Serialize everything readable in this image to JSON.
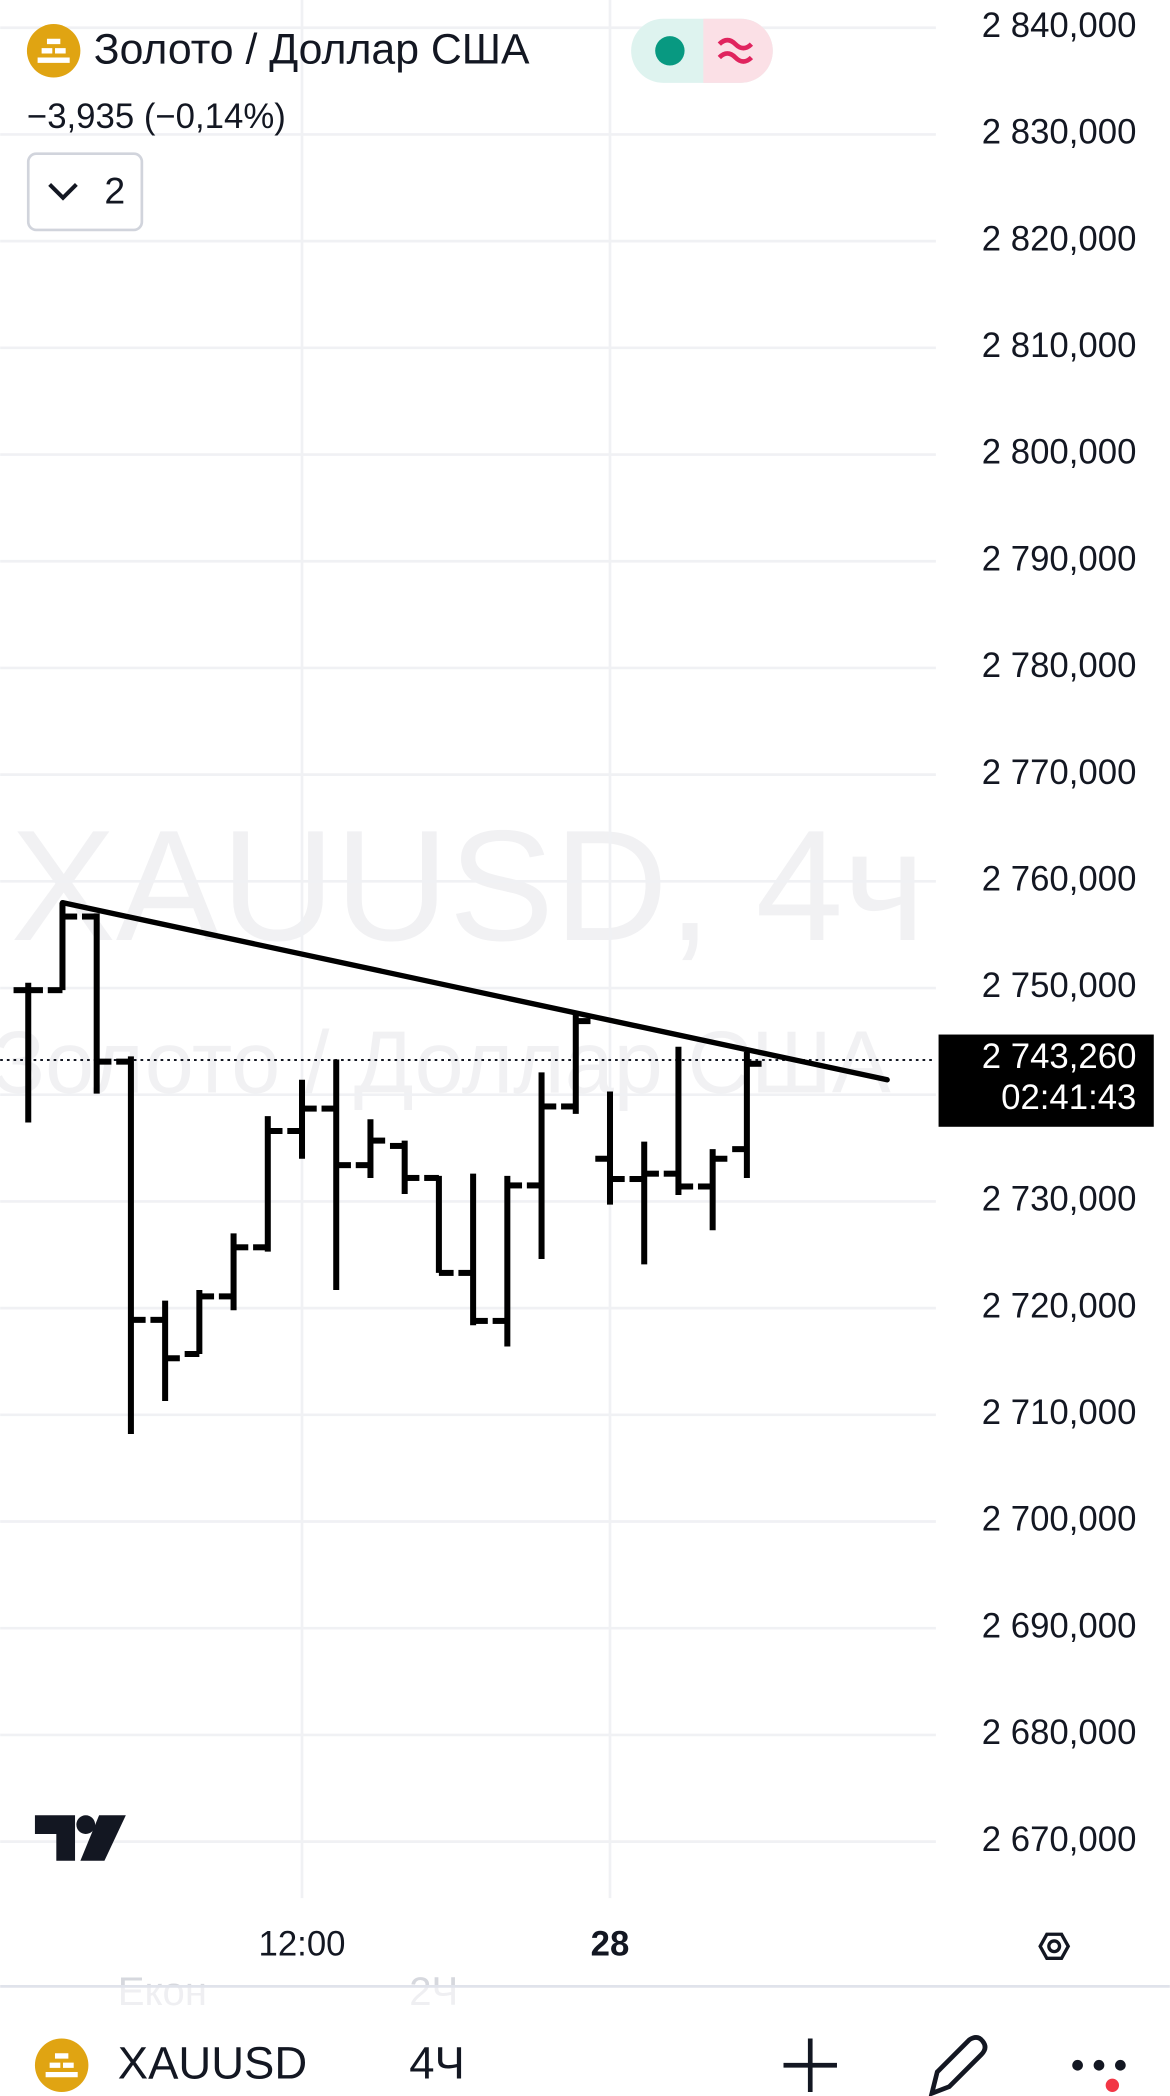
{
  "header": {
    "symbol_name": "Золото / Доллар США",
    "change": "−3,935 (−0,14%)",
    "indicators_count": "2"
  },
  "chart_data": {
    "type": "ohlc",
    "watermark": [
      "XAUUSD, 4ч",
      "Золото / Доллар США"
    ],
    "categories": [
      null,
      null,
      null,
      null,
      null,
      null,
      null,
      null,
      "12:00",
      null,
      null,
      null,
      null,
      null,
      null,
      null,
      null,
      "28",
      null,
      null,
      null,
      null
    ],
    "open": [
      2749.8,
      2749.8,
      2756.7,
      2743.1,
      2718.9,
      2715.7,
      2721.1,
      2725.7,
      2736.6,
      2738.7,
      2733.4,
      2735.2,
      2732.2,
      2723.3,
      2718.8,
      2731.5,
      2738.9,
      2734.0,
      2732.1,
      2732.6,
      2731.4,
      2734.9
    ],
    "high": [
      2750.5,
      2758.0,
      2757.0,
      2743.6,
      2720.7,
      2721.7,
      2727.0,
      2738.0,
      2741.4,
      2743.3,
      2737.7,
      2735.7,
      2732.4,
      2732.6,
      2732.4,
      2742.1,
      2747.5,
      2740.3,
      2735.6,
      2744.5,
      2734.9,
      2744.0
    ],
    "low": [
      2737.4,
      2749.8,
      2740.1,
      2708.2,
      2711.3,
      2715.7,
      2719.8,
      2725.3,
      2734.0,
      2721.7,
      2732.2,
      2730.7,
      2723.3,
      2718.4,
      2716.4,
      2724.6,
      2738.2,
      2729.7,
      2724.1,
      2730.6,
      2727.3,
      2732.2
    ],
    "close": [
      2749.8,
      2756.7,
      2743.1,
      2718.9,
      2715.3,
      2721.1,
      2725.7,
      2736.6,
      2738.7,
      2733.4,
      2735.7,
      2732.2,
      2723.3,
      2718.8,
      2731.5,
      2738.9,
      2746.9,
      2732.1,
      2732.6,
      2731.4,
      2734.0,
      2742.9
    ],
    "color": "#000000",
    "trendline": {
      "x": [
        1,
        25.1
      ],
      "y": [
        2758.0,
        2741.4
      ]
    },
    "last_price": {
      "value": 2743.26,
      "label": "2 743,260"
    },
    "countdown": "02:41:43",
    "ylim": [
      2664.7,
      2842.6
    ],
    "yticks": [
      {
        "value": 2670,
        "label": "2 670,000"
      },
      {
        "value": 2680,
        "label": "2 680,000"
      },
      {
        "value": 2690,
        "label": "2 690,000"
      },
      {
        "value": 2700,
        "label": "2 700,000"
      },
      {
        "value": 2710,
        "label": "2 710,000"
      },
      {
        "value": 2720,
        "label": "2 720,000"
      },
      {
        "value": 2730,
        "label": "2 730,000"
      },
      {
        "value": 2740,
        "label": "2 740,000"
      },
      {
        "value": 2750,
        "label": "2 750,000"
      },
      {
        "value": 2760,
        "label": "2 760,000"
      },
      {
        "value": 2770,
        "label": "2 770,000"
      },
      {
        "value": 2780,
        "label": "2 780,000"
      },
      {
        "value": 2790,
        "label": "2 790,000"
      },
      {
        "value": 2800,
        "label": "2 800,000"
      },
      {
        "value": 2810,
        "label": "2 810,000"
      },
      {
        "value": 2820,
        "label": "2 820,000"
      },
      {
        "value": 2830,
        "label": "2 830,000"
      },
      {
        "value": 2840,
        "label": "2 840,000"
      }
    ],
    "grid": true
  },
  "toolbar": {
    "symbol": "XAUUSD",
    "interval": "4Ч",
    "faint": [
      "Екон",
      "2Ч"
    ]
  }
}
